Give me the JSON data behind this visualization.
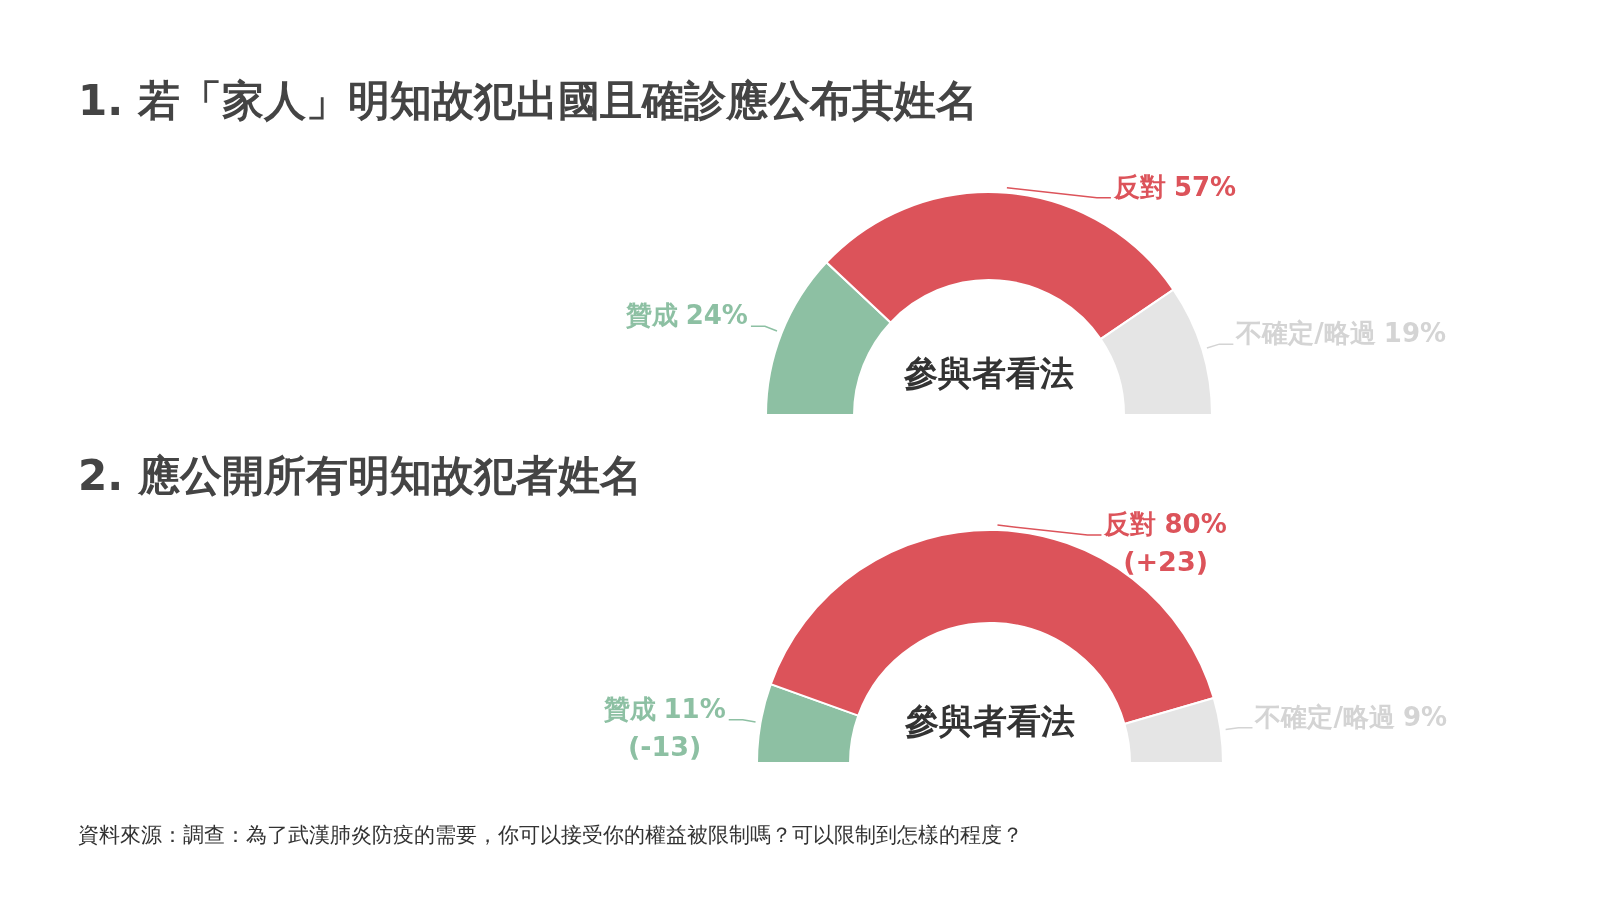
{
  "chart_data": [
    {
      "type": "donut",
      "title": "1. 若「家人」明知故犯出國且確診應公布其姓名",
      "categories": [
        "贊成",
        "反對",
        "不確定/略過"
      ],
      "values": [
        24,
        57,
        19
      ],
      "value_labels": [
        "24%",
        "57%",
        "19%"
      ],
      "colors": [
        "#8dc0a3",
        "#dc535a",
        "#e5e5e5"
      ],
      "annotations": [
        "參與者看法"
      ]
    },
    {
      "type": "donut",
      "title": "2. 應公開所有明知故犯者姓名",
      "categories": [
        "贊成",
        "反對",
        "不確定/略過"
      ],
      "values": [
        11,
        80,
        9
      ],
      "value_labels": [
        "11%",
        "80%",
        "9%"
      ],
      "colors": [
        "#8dc0a3",
        "#dc535a",
        "#e5e5e5"
      ],
      "annotations": [
        "參與者看法",
        {
          "text": "(+23)",
          "x": "反對"
        },
        {
          "text": "(-13)",
          "x": "贊成"
        },
        "資料來源：調查：為了武漢肺炎防疫的需要，你可以接受你的權益被限制嗎？可以限制到怎樣的程度？"
      ]
    }
  ]
}
